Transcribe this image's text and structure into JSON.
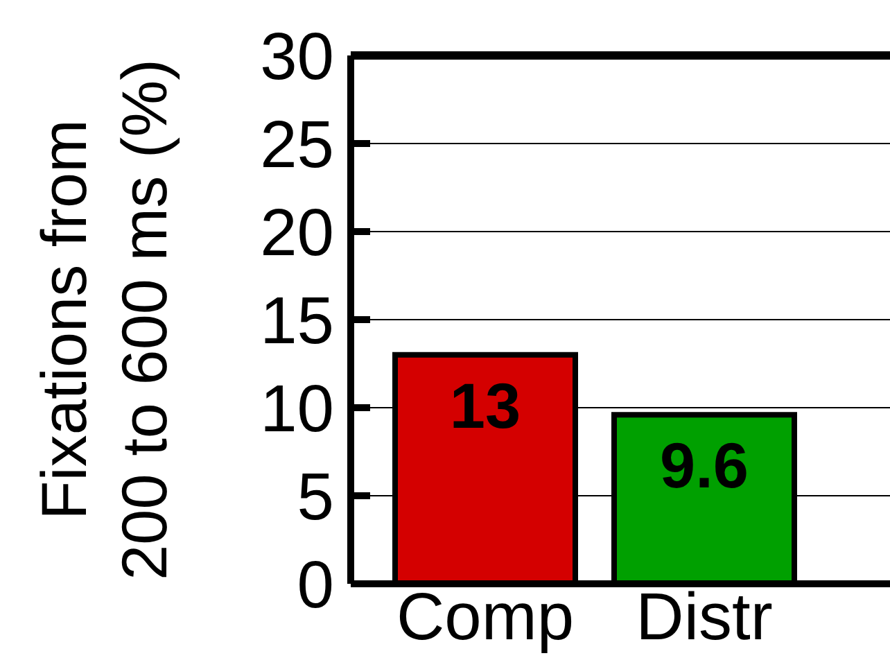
{
  "chart_data": {
    "type": "bar",
    "ylabel": "Fixations from\n200 to 600 ms (%)",
    "categories": [
      "Comp",
      "Distr"
    ],
    "values": [
      13,
      9.6
    ],
    "colors": [
      "#d40000",
      "#00a000"
    ],
    "ylim": [
      0,
      30
    ],
    "yticks": [
      0,
      5,
      10,
      15,
      20,
      25,
      30
    ],
    "grid": "y",
    "data_labels": true
  }
}
